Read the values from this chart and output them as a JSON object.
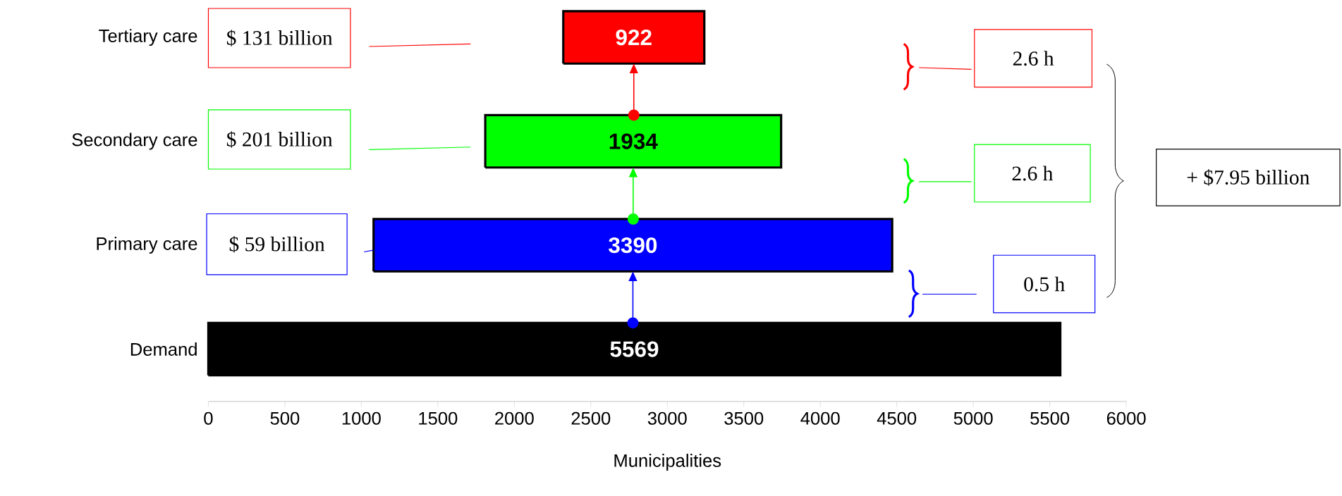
{
  "chart_data": {
    "type": "bar",
    "orientation": "horizontal",
    "categories": [
      "Tertiary care",
      "Secondary care",
      "Primary care",
      "Demand"
    ],
    "values": [
      922,
      1934,
      3390,
      5569
    ],
    "base": [
      2320,
      1810,
      1080,
      0
    ],
    "colors": [
      "#ff0000",
      "#00ff00",
      "#0000ff",
      "#000000"
    ],
    "data_labels": true,
    "xlabel": "Municipalities",
    "xlim": [
      0,
      6000
    ],
    "xticks": [
      0,
      500,
      1000,
      1500,
      2000,
      2500,
      3000,
      3500,
      4000,
      4500,
      5000,
      5500,
      6000
    ],
    "annotations": [
      "$ 131 billion",
      "$ 201 billion",
      "$ 59 billion",
      "2.6 h",
      "2.6 h",
      "0.5 h",
      "+ $7.95 billion"
    ]
  }
}
